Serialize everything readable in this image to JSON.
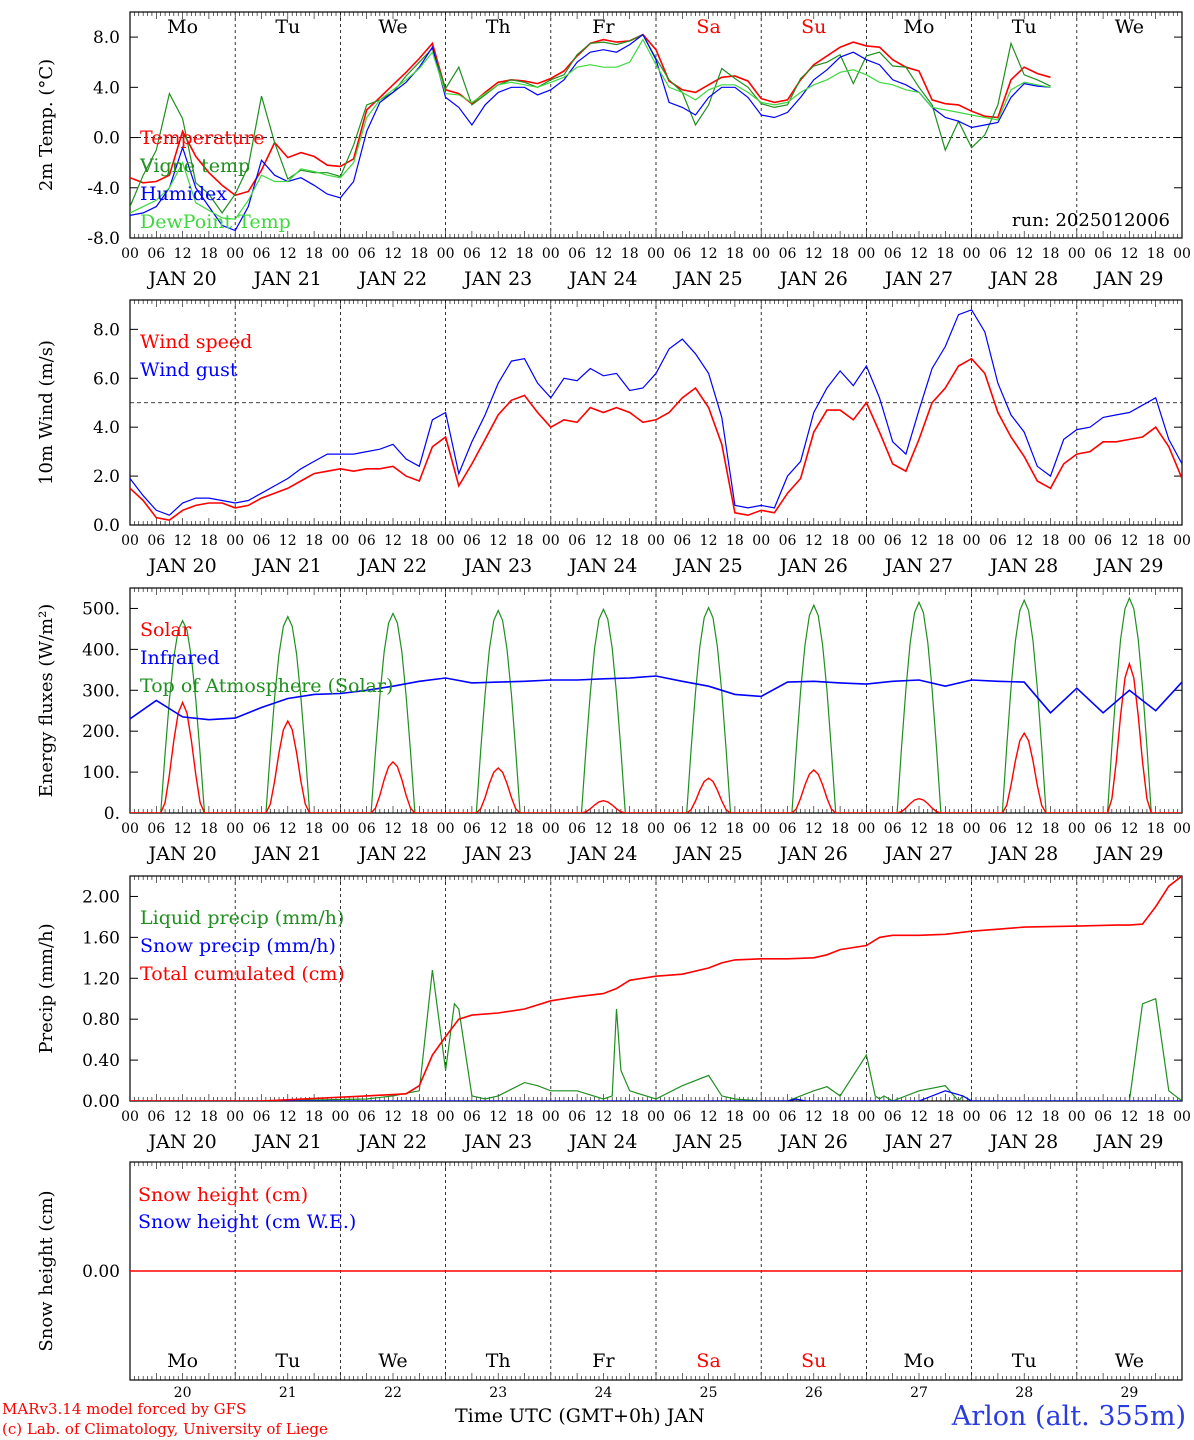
{
  "run_label": "run: 2025012006",
  "x_axis_title": "Time UTC (GMT+0h) JAN",
  "station": "Arlon (alt. 355m)",
  "credits": [
    "MARv3.14 model forced by GFS",
    "(c) Lab. of Climatology, University of Liege"
  ],
  "hour_ticks": [
    "00",
    "06",
    "12",
    "18"
  ],
  "hour_end_label": "00",
  "date_labels": [
    "JAN 20",
    "JAN 21",
    "JAN 22",
    "JAN 23",
    "JAN 24",
    "JAN 25",
    "JAN 26",
    "JAN 27",
    "JAN 28",
    "JAN 29"
  ],
  "weekdays": [
    "Mo",
    "Tu",
    "We",
    "Th",
    "Fr",
    "Sa",
    "Su",
    "Mo",
    "Tu",
    "We"
  ],
  "weekend_days": [
    5,
    6
  ],
  "day_numbers": [
    "20",
    "21",
    "22",
    "23",
    "24",
    "25",
    "26",
    "27",
    "28",
    "29"
  ],
  "colors": {
    "red": "#ff0000",
    "green": "#1f8f1f",
    "blue": "#0000ff",
    "lightgreen": "#3ed83e",
    "weekend": "#ff0000"
  },
  "chart_data": [
    {
      "type": "line",
      "ylabel": "2m Temp. (°C)",
      "ylim": [
        -8,
        10
      ],
      "yticks": [
        "-8.0",
        "-4.0",
        "0.0",
        "4.0",
        "8.0"
      ],
      "ytick_values": [
        -8,
        -4,
        0,
        4,
        8
      ],
      "ref_line": 0,
      "x_hours": [
        0,
        3,
        6,
        9,
        12,
        15,
        18,
        21,
        24,
        27,
        30,
        33,
        36,
        39,
        42,
        45,
        48,
        51,
        54,
        57,
        60,
        63,
        66,
        69,
        72,
        75,
        78,
        81,
        84,
        87,
        90,
        93,
        96,
        99,
        102,
        105,
        108,
        111,
        114,
        117,
        120,
        123,
        126,
        129,
        132,
        135,
        138,
        141,
        144,
        147,
        150,
        153,
        156,
        159,
        162,
        165,
        168,
        171,
        174,
        177,
        180,
        183,
        186,
        189,
        192,
        195,
        198,
        201,
        204,
        207,
        210,
        213,
        216,
        219,
        222,
        225,
        228,
        231,
        234,
        237,
        240
      ],
      "series": [
        {
          "name": "Temperature",
          "color": "red",
          "values": [
            -3.2,
            -3.6,
            -3.5,
            -3.0,
            0.5,
            -1.5,
            -2.8,
            -3.8,
            -4.6,
            -4.3,
            -2.6,
            -0.4,
            -1.6,
            -1.2,
            -1.5,
            -2.2,
            -2.3,
            -1.7,
            2.2,
            3.2,
            4.2,
            5.2,
            6.3,
            7.5,
            3.8,
            3.5,
            2.7,
            3.6,
            4.4,
            4.6,
            4.5,
            4.3,
            4.7,
            5.3,
            6.5,
            7.5,
            7.8,
            7.6,
            7.7,
            8.2,
            7.0,
            4.5,
            3.8,
            3.6,
            4.2,
            4.8,
            4.9,
            4.5,
            3.1,
            2.8,
            3.0,
            4.6,
            5.8,
            6.5,
            7.2,
            7.6,
            7.3,
            7.2,
            6.2,
            5.6,
            5.3,
            3.0,
            2.7,
            2.6,
            2.1,
            1.7,
            1.6,
            4.6,
            5.6,
            5.1,
            4.8
          ]
        },
        {
          "name": "Vigne temp",
          "color": "green",
          "values": [
            -5.5,
            -3.0,
            -1.0,
            3.5,
            1.5,
            -3.6,
            -4.5,
            -6.0,
            -4.5,
            -2.3,
            3.3,
            -0.4,
            -3.3,
            -2.6,
            -2.8,
            -2.8,
            -3.1,
            -0.6,
            2.6,
            3.0,
            3.6,
            4.9,
            6.0,
            7.1,
            3.9,
            5.6,
            2.6,
            3.4,
            4.2,
            4.6,
            4.4,
            4.0,
            4.6,
            5.0,
            6.6,
            7.5,
            7.6,
            7.4,
            7.7,
            8.2,
            6.3,
            4.6,
            3.6,
            1.0,
            2.6,
            5.5,
            4.7,
            4.0,
            2.7,
            2.4,
            2.6,
            4.7,
            5.7,
            6.0,
            6.6,
            4.3,
            6.5,
            6.8,
            5.7,
            5.6,
            4.0,
            2.6,
            -1.0,
            1.3,
            -0.8,
            0.2,
            2.6,
            7.5,
            5.0,
            4.6,
            4.1
          ]
        },
        {
          "name": "Humidex",
          "color": "blue",
          "values": [
            -6.2,
            -6.0,
            -5.5,
            -4.0,
            -0.8,
            -4.0,
            -5.5,
            -7.0,
            -7.4,
            -5.5,
            -1.8,
            -3.0,
            -3.5,
            -3.2,
            -3.8,
            -4.5,
            -4.8,
            -3.5,
            0.5,
            2.8,
            3.6,
            4.4,
            5.6,
            7.2,
            3.2,
            2.4,
            1.0,
            2.6,
            3.6,
            4.0,
            4.0,
            3.4,
            3.8,
            4.6,
            6.0,
            6.8,
            7.0,
            6.8,
            7.4,
            8.2,
            6.2,
            2.8,
            2.4,
            1.8,
            3.2,
            4.0,
            4.0,
            3.2,
            1.8,
            1.6,
            2.0,
            3.2,
            4.6,
            5.4,
            6.4,
            6.8,
            6.2,
            5.8,
            4.6,
            4.2,
            3.6,
            2.4,
            1.6,
            1.3,
            0.8,
            1.0,
            1.2,
            3.2,
            4.3,
            4.1,
            4.0
          ]
        },
        {
          "name": "DewPoint Temp",
          "color": "lightgreen",
          "values": [
            -6.0,
            -5.5,
            -5.0,
            -4.0,
            -2.0,
            -5.2,
            -5.8,
            -6.4,
            -6.5,
            -5.0,
            -3.0,
            -3.5,
            -3.5,
            -2.5,
            -2.7,
            -3.0,
            -3.2,
            -2.0,
            1.6,
            3.0,
            3.8,
            4.6,
            5.5,
            6.8,
            3.5,
            3.4,
            2.8,
            3.5,
            4.2,
            4.4,
            4.2,
            4.0,
            4.4,
            4.8,
            5.6,
            5.8,
            5.6,
            5.6,
            6.0,
            7.8,
            5.8,
            4.0,
            3.6,
            3.0,
            3.8,
            4.2,
            4.2,
            3.6,
            2.8,
            2.6,
            2.8,
            3.6,
            4.2,
            4.6,
            5.2,
            5.4,
            5.0,
            4.4,
            4.2,
            3.8,
            3.6,
            2.4,
            2.2,
            2.0,
            1.8,
            1.6,
            1.4,
            3.8,
            4.4,
            4.2,
            4.0
          ]
        }
      ],
      "annotation": "run: 2025012006"
    },
    {
      "type": "line",
      "ylabel": "10m Wind (m/s)",
      "ylim": [
        0,
        9.2
      ],
      "yticks": [
        "0.0",
        "2.0",
        "4.0",
        "6.0",
        "8.0"
      ],
      "ytick_values": [
        0,
        2,
        4,
        6,
        8
      ],
      "ref_line": 5,
      "x_hours": [
        0,
        3,
        6,
        9,
        12,
        15,
        18,
        21,
        24,
        27,
        30,
        33,
        36,
        39,
        42,
        45,
        48,
        51,
        54,
        57,
        60,
        63,
        66,
        69,
        72,
        75,
        78,
        81,
        84,
        87,
        90,
        93,
        96,
        99,
        102,
        105,
        108,
        111,
        114,
        117,
        120,
        123,
        126,
        129,
        132,
        135,
        138,
        141,
        144,
        147,
        150,
        153,
        156,
        159,
        162,
        165,
        168,
        171,
        174,
        177,
        180,
        183,
        186,
        189,
        192,
        195,
        198,
        201,
        204,
        207,
        210,
        213,
        216,
        219,
        222,
        225,
        228,
        231,
        234,
        237,
        240
      ],
      "series": [
        {
          "name": "Wind speed",
          "color": "red",
          "values": [
            1.5,
            1.0,
            0.3,
            0.2,
            0.6,
            0.8,
            0.9,
            0.9,
            0.7,
            0.8,
            1.1,
            1.3,
            1.5,
            1.8,
            2.1,
            2.2,
            2.3,
            2.2,
            2.3,
            2.3,
            2.4,
            2.0,
            1.8,
            3.2,
            3.6,
            1.6,
            2.5,
            3.5,
            4.5,
            5.1,
            5.3,
            4.6,
            4.0,
            4.3,
            4.2,
            4.8,
            4.6,
            4.8,
            4.6,
            4.2,
            4.3,
            4.6,
            5.2,
            5.6,
            4.8,
            3.3,
            0.5,
            0.4,
            0.6,
            0.5,
            1.3,
            1.9,
            3.8,
            4.7,
            4.7,
            4.3,
            5.0,
            3.8,
            2.5,
            2.2,
            3.5,
            5.0,
            5.6,
            6.5,
            6.8,
            6.2,
            4.6,
            3.6,
            2.8,
            1.8,
            1.5,
            2.5,
            2.9,
            3.0,
            3.4,
            3.4,
            3.5,
            3.6,
            4.0,
            3.2,
            1.9
          ]
        },
        {
          "name": "Wind gust",
          "color": "blue",
          "values": [
            1.9,
            1.2,
            0.6,
            0.4,
            0.9,
            1.1,
            1.1,
            1.0,
            0.9,
            1.0,
            1.3,
            1.6,
            1.9,
            2.3,
            2.6,
            2.9,
            2.9,
            2.9,
            3.0,
            3.1,
            3.3,
            2.7,
            2.4,
            4.3,
            4.6,
            2.1,
            3.4,
            4.5,
            5.8,
            6.7,
            6.8,
            5.8,
            5.2,
            6.0,
            5.9,
            6.4,
            6.1,
            6.2,
            5.5,
            5.6,
            6.2,
            7.2,
            7.6,
            7.0,
            6.2,
            4.4,
            0.8,
            0.7,
            0.8,
            0.7,
            2.0,
            2.6,
            4.6,
            5.6,
            6.3,
            5.7,
            6.5,
            5.2,
            3.4,
            2.9,
            4.7,
            6.4,
            7.3,
            8.6,
            8.8,
            7.9,
            5.8,
            4.5,
            3.8,
            2.4,
            2.0,
            3.5,
            3.9,
            4.0,
            4.4,
            4.5,
            4.6,
            4.9,
            5.2,
            3.5,
            2.5
          ]
        }
      ]
    },
    {
      "type": "line",
      "ylabel": "Energy fluxes (W/m²)",
      "ylim": [
        0,
        550
      ],
      "yticks": [
        "0.",
        "100.",
        "200.",
        "300.",
        "400.",
        "500."
      ],
      "ytick_values": [
        0,
        100,
        200,
        300,
        400,
        500
      ],
      "solar_peaks": [
        270,
        225,
        125,
        110,
        30,
        85,
        105,
        35,
        195,
        365
      ],
      "toa_peaks": [
        470,
        480,
        488,
        495,
        498,
        502,
        508,
        515,
        520,
        525
      ],
      "series": [
        {
          "name": "Solar",
          "color": "red"
        },
        {
          "name": "Infrared",
          "color": "blue",
          "x_hours": [
            0,
            6,
            12,
            18,
            24,
            30,
            36,
            42,
            48,
            54,
            60,
            66,
            72,
            78,
            84,
            90,
            96,
            102,
            108,
            114,
            120,
            126,
            132,
            138,
            144,
            150,
            156,
            162,
            168,
            174,
            180,
            186,
            192,
            198,
            204,
            210,
            216,
            222,
            228,
            234,
            240
          ],
          "values": [
            230,
            275,
            235,
            228,
            232,
            258,
            280,
            290,
            292,
            300,
            310,
            322,
            330,
            318,
            320,
            322,
            325,
            325,
            328,
            330,
            335,
            322,
            310,
            290,
            285,
            320,
            322,
            318,
            315,
            322,
            325,
            310,
            325,
            322,
            320,
            245,
            305,
            245,
            300,
            250,
            320
          ]
        },
        {
          "name": "Top of Atmosphere (Solar)",
          "color": "green"
        }
      ]
    },
    {
      "type": "line",
      "ylabel": "Precip (mm/h)",
      "ylim": [
        0,
        2.2
      ],
      "yticks": [
        "0.00",
        "0.40",
        "0.80",
        "1.20",
        "1.60",
        "2.00"
      ],
      "ytick_values": [
        0,
        0.4,
        0.8,
        1.2,
        1.6,
        2.0
      ],
      "series": [
        {
          "name": "Liquid precip (mm/h)",
          "color": "green",
          "x_hours": [
            0,
            30,
            54,
            60,
            66,
            69,
            72,
            74,
            75,
            78,
            81,
            84,
            90,
            93,
            96,
            102,
            108,
            110,
            111,
            112,
            114,
            120,
            126,
            132,
            135,
            138,
            144,
            150,
            156,
            159,
            162,
            168,
            170,
            171,
            172,
            174,
            180,
            186,
            189,
            190,
            192,
            198,
            204,
            216,
            228,
            231,
            234,
            237,
            240
          ],
          "values": [
            0,
            0,
            0.02,
            0.05,
            0.1,
            1.28,
            0.3,
            0.95,
            0.9,
            0.05,
            0.02,
            0.05,
            0.18,
            0.15,
            0.1,
            0.1,
            0.02,
            0.05,
            0.9,
            0.3,
            0.1,
            0.02,
            0.15,
            0.25,
            0.05,
            0.02,
            0,
            0,
            0.1,
            0.14,
            0.05,
            0.45,
            0.05,
            0.02,
            0.05,
            0,
            0.1,
            0.15,
            0,
            0.05,
            0,
            0,
            0,
            0,
            0,
            0.95,
            1.0,
            0.1,
            0
          ]
        },
        {
          "name": "Snow precip (mm/h)",
          "color": "blue",
          "x_hours": [
            0,
            120,
            150,
            152,
            154,
            180,
            186,
            190,
            192,
            240
          ],
          "values": [
            0,
            0,
            0,
            0.02,
            0,
            0,
            0.1,
            0.05,
            0,
            0
          ]
        },
        {
          "name": "Total cumulated (cm)",
          "color": "red",
          "x_hours": [
            0,
            30,
            54,
            63,
            66,
            69,
            72,
            75,
            78,
            84,
            90,
            96,
            102,
            108,
            111,
            114,
            120,
            126,
            132,
            135,
            138,
            144,
            150,
            156,
            159,
            162,
            168,
            171,
            174,
            180,
            186,
            192,
            198,
            204,
            216,
            225,
            228,
            231,
            234,
            237,
            240
          ],
          "values": [
            0,
            0,
            0.05,
            0.07,
            0.15,
            0.45,
            0.63,
            0.8,
            0.84,
            0.86,
            0.9,
            0.98,
            1.02,
            1.05,
            1.1,
            1.18,
            1.22,
            1.24,
            1.3,
            1.35,
            1.38,
            1.39,
            1.39,
            1.4,
            1.43,
            1.48,
            1.52,
            1.6,
            1.62,
            1.62,
            1.63,
            1.66,
            1.68,
            1.7,
            1.71,
            1.72,
            1.72,
            1.73,
            1.9,
            2.1,
            2.2
          ]
        }
      ]
    },
    {
      "type": "line",
      "ylabel": "Snow height (cm)",
      "ylim": [
        -1,
        1
      ],
      "yticks": [
        "0.00"
      ],
      "ytick_values": [
        0
      ],
      "series": [
        {
          "name": "Snow height (cm)",
          "color": "red",
          "values": [
            0,
            0
          ]
        },
        {
          "name": "Snow height (cm W.E.)",
          "color": "blue",
          "values": [
            0,
            0
          ]
        }
      ]
    }
  ]
}
